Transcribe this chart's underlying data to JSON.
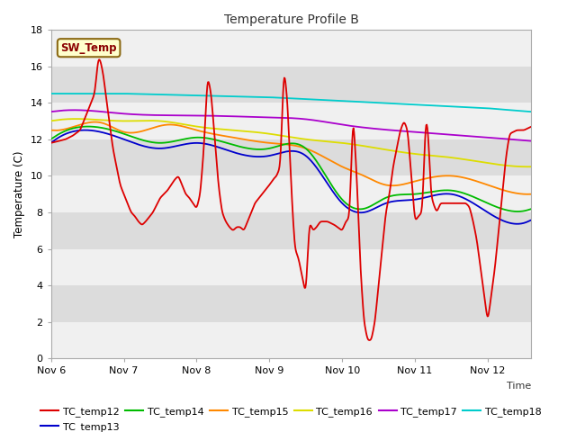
{
  "title": "Temperature Profile B",
  "xlabel": "Time",
  "ylabel": "Temperature (C)",
  "ylim": [
    0,
    18
  ],
  "xlim": [
    0,
    6.6
  ],
  "sw_temp_label": "SW_Temp",
  "x_tick_labels": [
    "Nov 6",
    "Nov 7",
    "Nov 8",
    "Nov 9",
    "Nov 10",
    "Nov 11",
    "Nov 12"
  ],
  "x_tick_positions": [
    0,
    1,
    2,
    3,
    4,
    5,
    6
  ],
  "y_ticks": [
    0,
    2,
    4,
    6,
    8,
    10,
    12,
    14,
    16,
    18
  ],
  "line_colors": {
    "TC_temp12": "#dd0000",
    "TC_temp13": "#0000cc",
    "TC_temp14": "#00bb00",
    "TC_temp15": "#ff8800",
    "TC_temp16": "#dddd00",
    "TC_temp17": "#aa00cc",
    "TC_temp18": "#00cccc"
  },
  "band_colors": [
    "#f0f0f0",
    "#dcdcdc"
  ],
  "fig_bg": "#ffffff"
}
